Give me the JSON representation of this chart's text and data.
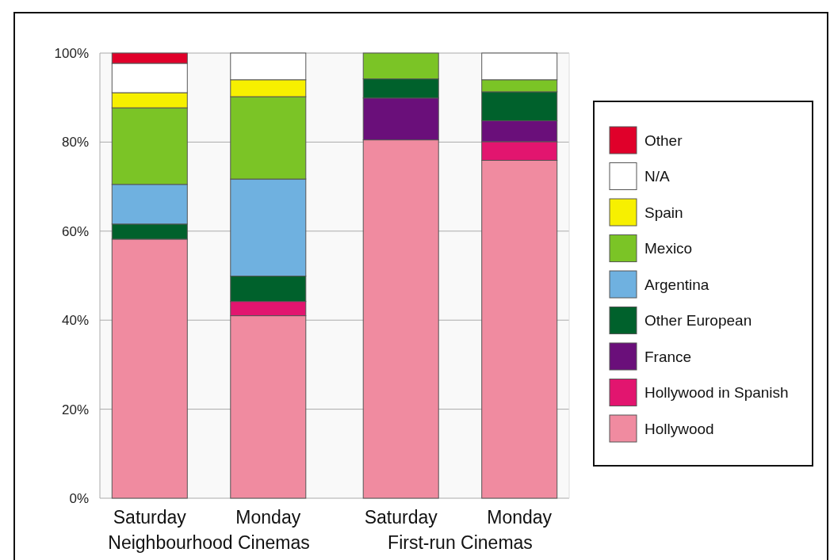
{
  "chart_data": {
    "type": "bar",
    "stacked": true,
    "categories": [
      "Saturday",
      "Monday",
      "Saturday",
      "Monday"
    ],
    "annotations": [
      "Neighbourhood Cinemas",
      "First-run Cinemas"
    ],
    "ylim": [
      0,
      100
    ],
    "yticks": [
      {
        "value": 0,
        "label": "0%"
      },
      {
        "value": 20,
        "label": "20%"
      },
      {
        "value": 40,
        "label": "40%"
      },
      {
        "value": 60,
        "label": "60%"
      },
      {
        "value": 80,
        "label": "80%"
      },
      {
        "value": 100,
        "label": "100%"
      }
    ],
    "grid": "y",
    "legend": "right",
    "series": [
      {
        "name": "Hollywood",
        "color": "#f08ba0",
        "values": [
          58.2,
          41,
          80.5,
          75.9
        ]
      },
      {
        "name": "Hollywood in Spanish",
        "color": "#e2156f",
        "values": [
          null,
          3.2,
          null,
          4.2
        ]
      },
      {
        "name": "France",
        "color": "#6a0f7a",
        "values": [
          null,
          null,
          9.4,
          4.7
        ]
      },
      {
        "name": "Other European",
        "color": "#00612c",
        "values": [
          3.4,
          5.7,
          4.3,
          6.5
        ]
      },
      {
        "name": "Argentina",
        "color": "#6fb1e0",
        "values": [
          8.9,
          21.8,
          null,
          null
        ]
      },
      {
        "name": "Mexico",
        "color": "#7bc426",
        "values": [
          17.2,
          18.5,
          5.8,
          2.7
        ]
      },
      {
        "name": "Spain",
        "color": "#f7f000",
        "values": [
          3.4,
          3.8,
          null,
          null
        ]
      },
      {
        "name": "N/A",
        "color": "#ffffff",
        "values": [
          6.6,
          6.0,
          null,
          6.0
        ]
      },
      {
        "name": "Other",
        "color": "#e0002a",
        "values": [
          2.3,
          null,
          null,
          null
        ]
      }
    ]
  }
}
